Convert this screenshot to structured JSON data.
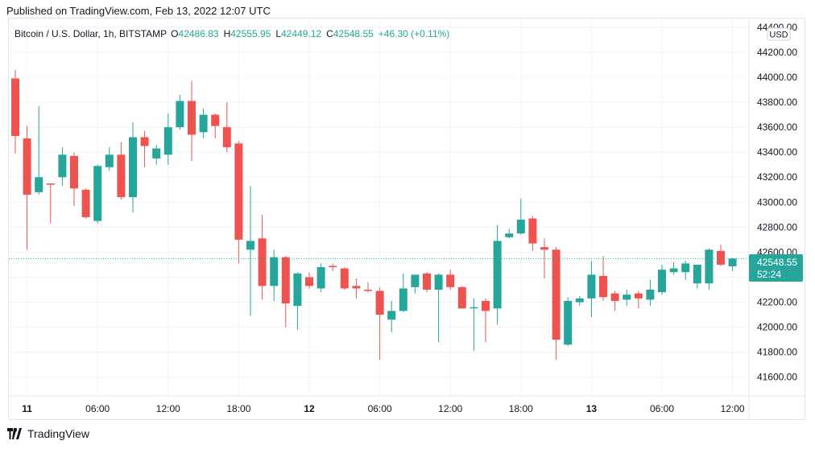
{
  "published": "Published on TradingView.com, Feb 13, 2022 12:07 UTC",
  "footer_brand": "TradingView",
  "legend": {
    "symbol": "Bitcoin / U.S. Dollar, 1h, BITSTAMP",
    "o_label": "O",
    "o": "42486.83",
    "h_label": "H",
    "h": "42555.95",
    "l_label": "L",
    "l": "42449.12",
    "c_label": "C",
    "c": "42548.55",
    "change": "+46.30 (+0.11%)"
  },
  "currency": "USD",
  "last_price": {
    "price": "42548.55",
    "countdown": "52:24",
    "value": 42548.55
  },
  "colors": {
    "up": "#26a69a",
    "down": "#ef5350",
    "grid": "#f0f3fa",
    "text": "#131722",
    "label_bg": "#26a69a"
  },
  "chart_data": {
    "type": "candlestick",
    "interval": "1h",
    "ylim": [
      41450,
      44470
    ],
    "y_ticks": [
      "41600.00",
      "41800.00",
      "42000.00",
      "42200.00",
      "42400.00",
      "42600.00",
      "42800.00",
      "43000.00",
      "43200.00",
      "43400.00",
      "43600.00",
      "43800.00",
      "44000.00",
      "44200.00",
      "44400.00"
    ],
    "x_ticks": [
      {
        "label": "11",
        "index": 1,
        "bold": true
      },
      {
        "label": "06:00",
        "index": 7,
        "bold": false
      },
      {
        "label": "12:00",
        "index": 13,
        "bold": false
      },
      {
        "label": "18:00",
        "index": 19,
        "bold": false
      },
      {
        "label": "12",
        "index": 25,
        "bold": true
      },
      {
        "label": "06:00",
        "index": 31,
        "bold": false
      },
      {
        "label": "12:00",
        "index": 37,
        "bold": false
      },
      {
        "label": "18:00",
        "index": 43,
        "bold": false
      },
      {
        "label": "13",
        "index": 49,
        "bold": true
      },
      {
        "label": "06:00",
        "index": 55,
        "bold": false
      },
      {
        "label": "12:00",
        "index": 61,
        "bold": false
      }
    ],
    "candles": [
      {
        "o": 43990,
        "h": 44060,
        "l": 43390,
        "c": 43530
      },
      {
        "o": 43510,
        "h": 43610,
        "l": 42620,
        "c": 43060
      },
      {
        "o": 43080,
        "h": 43770,
        "l": 43060,
        "c": 43200
      },
      {
        "o": 43150,
        "h": 43150,
        "l": 42830,
        "c": 43140
      },
      {
        "o": 43200,
        "h": 43440,
        "l": 43130,
        "c": 43380
      },
      {
        "o": 43370,
        "h": 43400,
        "l": 42970,
        "c": 43110
      },
      {
        "o": 43100,
        "h": 43110,
        "l": 42870,
        "c": 42880
      },
      {
        "o": 42850,
        "h": 43300,
        "l": 42830,
        "c": 43290
      },
      {
        "o": 43280,
        "h": 43440,
        "l": 43250,
        "c": 43380
      },
      {
        "o": 43380,
        "h": 43480,
        "l": 43020,
        "c": 43040
      },
      {
        "o": 43040,
        "h": 43640,
        "l": 42920,
        "c": 43520
      },
      {
        "o": 43520,
        "h": 43570,
        "l": 43280,
        "c": 43450
      },
      {
        "o": 43350,
        "h": 43460,
        "l": 43300,
        "c": 43430
      },
      {
        "o": 43380,
        "h": 43710,
        "l": 43300,
        "c": 43600
      },
      {
        "o": 43600,
        "h": 43860,
        "l": 43580,
        "c": 43810
      },
      {
        "o": 43810,
        "h": 43970,
        "l": 43330,
        "c": 43540
      },
      {
        "o": 43560,
        "h": 43750,
        "l": 43510,
        "c": 43700
      },
      {
        "o": 43700,
        "h": 43710,
        "l": 43510,
        "c": 43610
      },
      {
        "o": 43600,
        "h": 43800,
        "l": 43400,
        "c": 43440
      },
      {
        "o": 43470,
        "h": 43490,
        "l": 42510,
        "c": 42700
      },
      {
        "o": 42620,
        "h": 43130,
        "l": 42090,
        "c": 42690
      },
      {
        "o": 42710,
        "h": 42900,
        "l": 42220,
        "c": 42330
      },
      {
        "o": 42330,
        "h": 42620,
        "l": 42210,
        "c": 42560
      },
      {
        "o": 42560,
        "h": 42570,
        "l": 42000,
        "c": 42190
      },
      {
        "o": 42170,
        "h": 42440,
        "l": 41980,
        "c": 42430
      },
      {
        "o": 42400,
        "h": 42440,
        "l": 42310,
        "c": 42330
      },
      {
        "o": 42310,
        "h": 42510,
        "l": 42280,
        "c": 42480
      },
      {
        "o": 42490,
        "h": 42510,
        "l": 42450,
        "c": 42480
      },
      {
        "o": 42470,
        "h": 42480,
        "l": 42300,
        "c": 42310
      },
      {
        "o": 42330,
        "h": 42390,
        "l": 42230,
        "c": 42310
      },
      {
        "o": 42300,
        "h": 42360,
        "l": 42280,
        "c": 42290
      },
      {
        "o": 42290,
        "h": 42320,
        "l": 41740,
        "c": 42100
      },
      {
        "o": 42060,
        "h": 42210,
        "l": 41960,
        "c": 42130
      },
      {
        "o": 42130,
        "h": 42430,
        "l": 42120,
        "c": 42310
      },
      {
        "o": 42320,
        "h": 42420,
        "l": 42270,
        "c": 42420
      },
      {
        "o": 42430,
        "h": 42440,
        "l": 42280,
        "c": 42300
      },
      {
        "o": 42300,
        "h": 42430,
        "l": 41880,
        "c": 42420
      },
      {
        "o": 42420,
        "h": 42460,
        "l": 42300,
        "c": 42320
      },
      {
        "o": 42320,
        "h": 42330,
        "l": 42150,
        "c": 42150
      },
      {
        "o": 42150,
        "h": 42230,
        "l": 41810,
        "c": 42160
      },
      {
        "o": 42210,
        "h": 42230,
        "l": 41880,
        "c": 42130
      },
      {
        "o": 42150,
        "h": 42820,
        "l": 42020,
        "c": 42690
      },
      {
        "o": 42720,
        "h": 42790,
        "l": 42710,
        "c": 42750
      },
      {
        "o": 42750,
        "h": 43030,
        "l": 42740,
        "c": 42860
      },
      {
        "o": 42870,
        "h": 42890,
        "l": 42610,
        "c": 42670
      },
      {
        "o": 42640,
        "h": 42710,
        "l": 42390,
        "c": 42620
      },
      {
        "o": 42620,
        "h": 42640,
        "l": 41740,
        "c": 41900
      },
      {
        "o": 41860,
        "h": 42240,
        "l": 41850,
        "c": 42210
      },
      {
        "o": 42200,
        "h": 42250,
        "l": 42170,
        "c": 42230
      },
      {
        "o": 42230,
        "h": 42530,
        "l": 42080,
        "c": 42420
      },
      {
        "o": 42410,
        "h": 42570,
        "l": 42210,
        "c": 42240
      },
      {
        "o": 42270,
        "h": 42290,
        "l": 42130,
        "c": 42210
      },
      {
        "o": 42220,
        "h": 42300,
        "l": 42170,
        "c": 42260
      },
      {
        "o": 42270,
        "h": 42290,
        "l": 42150,
        "c": 42230
      },
      {
        "o": 42220,
        "h": 42380,
        "l": 42170,
        "c": 42300
      },
      {
        "o": 42280,
        "h": 42500,
        "l": 42260,
        "c": 42460
      },
      {
        "o": 42440,
        "h": 42520,
        "l": 42420,
        "c": 42470
      },
      {
        "o": 42440,
        "h": 42530,
        "l": 42380,
        "c": 42510
      },
      {
        "o": 42350,
        "h": 42500,
        "l": 42310,
        "c": 42500
      },
      {
        "o": 42350,
        "h": 42630,
        "l": 42300,
        "c": 42620
      },
      {
        "o": 42610,
        "h": 42660,
        "l": 42490,
        "c": 42500
      },
      {
        "o": 42486.83,
        "h": 42555.95,
        "l": 42449.12,
        "c": 42548.55
      }
    ]
  }
}
